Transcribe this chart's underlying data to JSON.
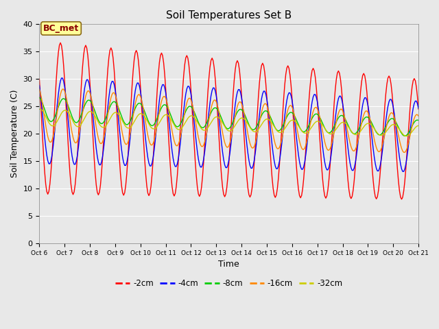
{
  "title": "Soil Temperatures Set B",
  "xlabel": "Time",
  "ylabel": "Soil Temperature (C)",
  "ylim": [
    0,
    40
  ],
  "yticks": [
    0,
    5,
    10,
    15,
    20,
    25,
    30,
    35,
    40
  ],
  "annotation_text": "BC_met",
  "annotation_color": "#8B0000",
  "annotation_bg": "#FFFF99",
  "bg_color": "#E8E8E8",
  "series_colors": [
    "#FF0000",
    "#0000FF",
    "#00CC00",
    "#FF8800",
    "#CCCC00"
  ],
  "series_labels": [
    "-2cm",
    "-4cm",
    "-8cm",
    "-16cm",
    "-32cm"
  ],
  "tick_days": [
    6,
    7,
    8,
    9,
    10,
    11,
    12,
    13,
    14,
    15,
    16,
    17,
    18,
    19,
    20,
    21
  ],
  "tick_labels": [
    "Oct 6",
    "Oct 7",
    "Oct 8",
    "Oct 9",
    "Oct 10",
    "Oct 11",
    "Oct 12",
    "Oct 13",
    "Oct 14",
    "Oct 15",
    "Oct 16",
    "Oct 17",
    "Oct 18",
    "Oct 19",
    "Oct 20",
    "Oct 21"
  ],
  "title_fontsize": 11,
  "axis_label_fontsize": 9
}
